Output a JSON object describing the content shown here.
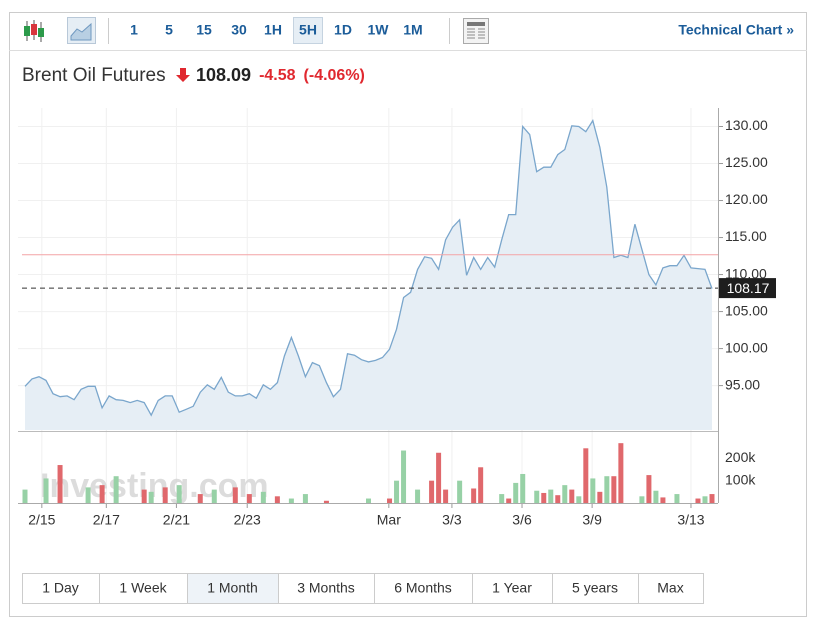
{
  "toolbar": {
    "intervals": [
      "1",
      "5",
      "15",
      "30",
      "1H",
      "5H",
      "1D",
      "1W",
      "1M"
    ],
    "selected_index": 5,
    "link": "Technical Chart »"
  },
  "header": {
    "name": "Brent Oil Futures",
    "price": "108.09",
    "change": "-4.58",
    "change_pct": "(-4.06%)"
  },
  "chart_data": {
    "type": "line",
    "color": "#7aa6cc",
    "fill": "#e6eef5",
    "ylim": [
      89,
      132.5
    ],
    "yticks": [
      {
        "value": 95,
        "label": "95.00"
      },
      {
        "value": 100,
        "label": "100.00"
      },
      {
        "value": 105,
        "label": "105.00"
      },
      {
        "value": 110,
        "label": "110.00"
      },
      {
        "value": 115,
        "label": "115.00"
      },
      {
        "value": 120,
        "label": "120.00"
      },
      {
        "value": 125,
        "label": "125.00"
      },
      {
        "value": 130,
        "label": "130.00"
      }
    ],
    "xlim": [
      0,
      98
    ],
    "xticks": [
      {
        "value": 2.4,
        "label": "2/15"
      },
      {
        "value": 11.6,
        "label": "2/17"
      },
      {
        "value": 21.6,
        "label": "2/21"
      },
      {
        "value": 31.7,
        "label": "2/23"
      },
      {
        "value": 51.9,
        "label": "Mar"
      },
      {
        "value": 60.9,
        "label": "3/3"
      },
      {
        "value": 70.9,
        "label": "3/6"
      },
      {
        "value": 80.9,
        "label": "3/9"
      },
      {
        "value": 95,
        "label": "3/13"
      }
    ],
    "values": [
      94.9,
      95.9,
      96.2,
      95.7,
      93.9,
      93.5,
      93.6,
      93.1,
      94.5,
      94.9,
      94.9,
      92.0,
      93.6,
      93.1,
      93.0,
      92.7,
      93.0,
      92.7,
      91.0,
      93.0,
      93.6,
      93.6,
      91.4,
      91.8,
      92.2,
      94.1,
      95.1,
      94.5,
      96.1,
      94.1,
      93.6,
      93.6,
      93.9,
      93.3,
      95.1,
      94.5,
      95.4,
      99.0,
      101.5,
      99.0,
      96.2,
      98.1,
      97.7,
      95.4,
      93.5,
      94.5,
      99.3,
      99.1,
      98.5,
      98.2,
      98.4,
      98.8,
      99.9,
      102.6,
      106.9,
      107.6,
      110.7,
      112.4,
      112.2,
      110.7,
      114.7,
      116.4,
      117.4,
      109.9,
      112.3,
      110.7,
      112.3,
      111.0,
      114.7,
      118.1,
      118.1,
      130.0,
      128.9,
      123.9,
      124.5,
      124.5,
      126.2,
      126.9,
      130.1,
      130.0,
      129.3,
      130.8,
      127.2,
      121.8,
      112.3,
      112.6,
      112.3,
      116.8,
      113.4,
      110.0,
      108.6,
      110.9,
      111.2,
      111.2,
      112.6,
      110.9,
      110.8,
      110.7,
      108.1
    ],
    "reference_line": {
      "value": 112.67,
      "color": "#f4a3a6"
    },
    "last": 108.17,
    "volume": {
      "ylim": [
        0,
        318000
      ],
      "yticks": [
        {
          "value": 200000,
          "label": "200k"
        },
        {
          "value": 100000,
          "label": "100k"
        }
      ],
      "series": [
        {
          "color": "#97d1a6",
          "x": [
            0,
            3,
            9,
            13,
            18,
            22,
            27,
            34,
            38,
            40,
            49,
            53,
            54,
            56,
            62,
            68,
            70,
            71,
            73,
            75,
            77,
            79,
            81,
            83,
            88,
            90,
            93,
            97
          ],
          "values": [
            60000,
            110000,
            70000,
            120000,
            50000,
            80000,
            60000,
            50000,
            20000,
            40000,
            20000,
            100000,
            235000,
            60000,
            100000,
            40000,
            90000,
            130000,
            55000,
            60000,
            80000,
            30000,
            110000,
            120000,
            30000,
            55000,
            40000,
            30000
          ]
        },
        {
          "color": "#e0686c",
          "x": [
            5,
            11,
            17,
            20,
            25,
            30,
            32,
            36,
            43,
            52,
            58,
            59,
            60,
            64,
            65,
            69,
            74,
            76,
            78,
            80,
            82,
            84,
            85,
            89,
            91,
            96,
            98
          ],
          "values": [
            170000,
            80000,
            60000,
            70000,
            40000,
            70000,
            40000,
            30000,
            10000,
            20000,
            100000,
            225000,
            60000,
            65000,
            160000,
            20000,
            45000,
            35000,
            60000,
            245000,
            50000,
            120000,
            268000,
            125000,
            25000,
            20000,
            40000
          ]
        }
      ]
    },
    "watermark": "Investing.com"
  },
  "ranges": {
    "options": [
      "1 Day",
      "1 Week",
      "1 Month",
      "3 Months",
      "6 Months",
      "1 Year",
      "5 years",
      "Max"
    ],
    "selected_index": 2
  }
}
